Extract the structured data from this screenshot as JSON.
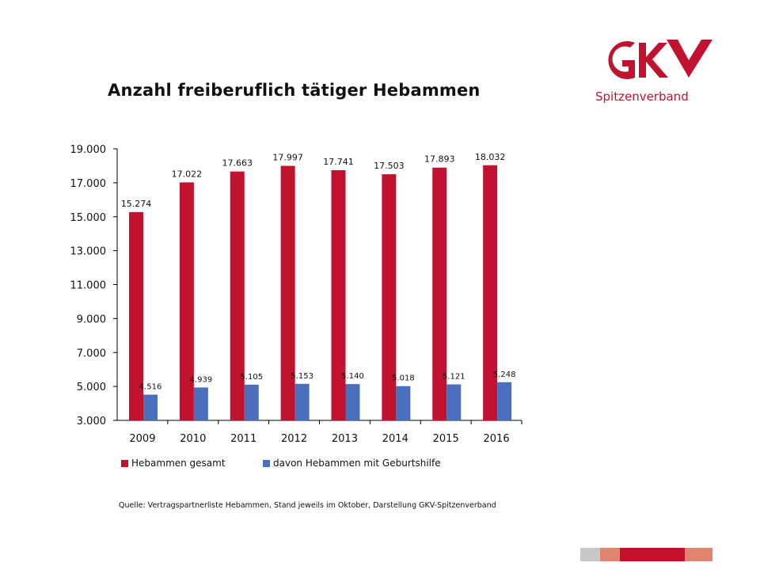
{
  "logo": {
    "name": "GKV-logo",
    "text": "Spitzenverband"
  },
  "legend": [
    "Hebammen gesamt",
    "davon Hebammen mit Geburtshilfe"
  ],
  "source": "Quelle: Vertragspartnerliste Hebammen, Stand jeweils im Oktober, Darstellung GKV-Spitzenverband",
  "colors": {
    "red": "#c1122f",
    "blue": "#4a6fbd",
    "gray": "#c8c8c8",
    "salmon": "#e08670"
  },
  "chart_data": {
    "type": "bar",
    "title": "Anzahl freiberuflich tätiger Hebammen",
    "categories": [
      "2009",
      "2010",
      "2011",
      "2012",
      "2013",
      "2014",
      "2015",
      "2016"
    ],
    "series": [
      {
        "name": "Hebammen gesamt",
        "color": "#c1122f",
        "values": [
          15274,
          17022,
          17663,
          17997,
          17741,
          17503,
          17893,
          18032
        ],
        "labels": [
          "15.274",
          "17.022",
          "17.663",
          "17.997",
          "17.741",
          "17.503",
          "17.893",
          "18.032"
        ]
      },
      {
        "name": "davon Hebammen mit Geburtshilfe",
        "color": "#4a6fbd",
        "values": [
          4516,
          4939,
          5105,
          5153,
          5140,
          5018,
          5121,
          5248
        ],
        "labels": [
          "4.516",
          "4.939",
          "5.105",
          "5.153",
          "5.140",
          "5.018",
          "5.121",
          "5.248"
        ]
      }
    ],
    "yticks": [
      "3.000",
      "5.000",
      "7.000",
      "9.000",
      "11.000",
      "13.000",
      "15.000",
      "17.000",
      "19.000"
    ],
    "ylim": [
      3000,
      19000
    ],
    "xlabel": "",
    "ylabel": "",
    "grid": false,
    "legend_position": "bottom-left"
  }
}
